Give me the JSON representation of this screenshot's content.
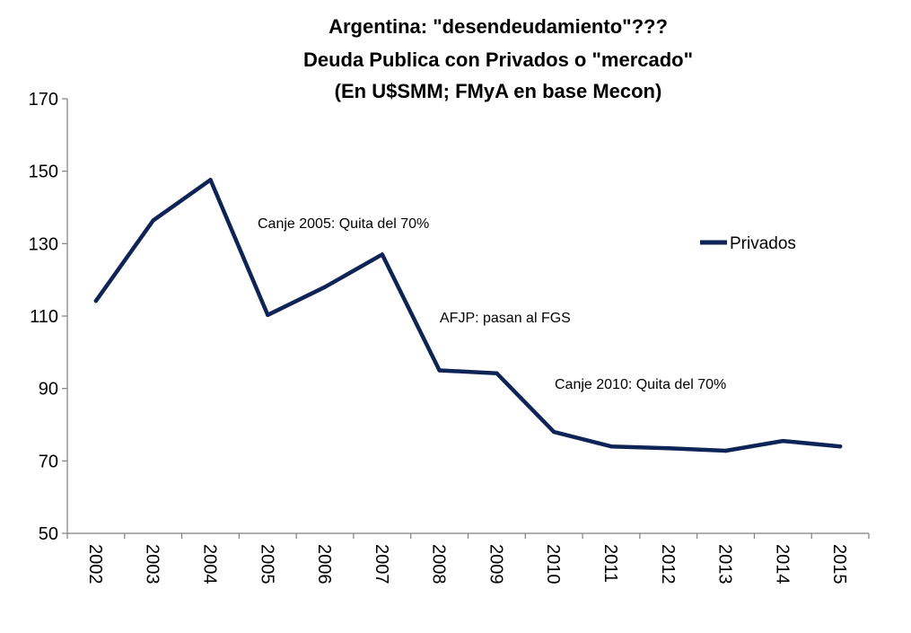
{
  "chart_data": {
    "type": "line",
    "title_lines": [
      "Argentina: \"desendeudamiento\"???",
      "Deuda Publica con Privados o \"mercado\"",
      "(En U$SMM; FMyA en base Mecon)"
    ],
    "categories": [
      "2002",
      "2003",
      "2004",
      "2005",
      "2006",
      "2007",
      "2008",
      "2009",
      "2010",
      "2011",
      "2012",
      "2013",
      "2014",
      "2015"
    ],
    "series": [
      {
        "name": "Privados",
        "values": [
          114.2,
          136.4,
          147.6,
          110.3,
          118.0,
          127.0,
          95.0,
          94.2,
          78.0,
          74.0,
          73.5,
          72.8,
          75.5,
          74.0
        ],
        "color": "#0f2456"
      }
    ],
    "yticks": [
      50,
      70,
      90,
      110,
      130,
      150,
      170
    ],
    "ylim": [
      50,
      170
    ],
    "grid": false,
    "legend": "right",
    "annotations": [
      {
        "text": "Canje 2005: Quita del 70%"
      },
      {
        "text": "AFJP: pasan al FGS"
      },
      {
        "text": "Canje 2010: Quita del 70%"
      }
    ]
  }
}
